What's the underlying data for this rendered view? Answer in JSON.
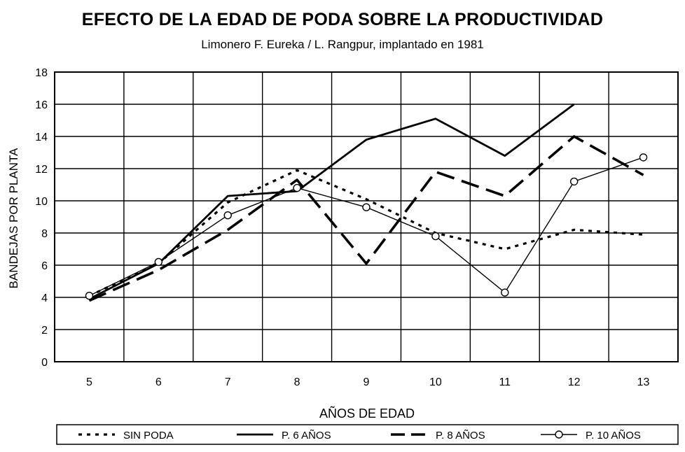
{
  "chart_data": {
    "type": "line",
    "title": "EFECTO DE LA EDAD DE  PODA SOBRE LA PRODUCTIVIDAD",
    "subtitle": "Limonero F. Eureka / L. Rangpur, implantado en 1981",
    "xlabel": "AÑOS DE EDAD",
    "ylabel": "BANDEJAS POR PLANTA",
    "x": [
      5,
      6,
      7,
      8,
      9,
      10,
      11,
      12,
      13
    ],
    "xlim": [
      4.5,
      13.5
    ],
    "ylim": [
      0,
      18
    ],
    "yticks": [
      0,
      2,
      4,
      6,
      8,
      10,
      12,
      14,
      16,
      18
    ],
    "grid": true,
    "legend_position": "bottom",
    "series": [
      {
        "name": "SIN PODA",
        "style": "dotted",
        "values": [
          4.1,
          6.1,
          9.9,
          11.9,
          10.1,
          8.0,
          7.0,
          8.2,
          7.9
        ]
      },
      {
        "name": "P. 6 AÑOS",
        "style": "solid",
        "values": [
          3.9,
          6.1,
          10.3,
          10.6,
          13.8,
          15.1,
          12.8,
          16.0,
          null
        ]
      },
      {
        "name": "P. 8 AÑOS",
        "style": "dashed",
        "values": [
          3.8,
          5.7,
          8.2,
          11.3,
          6.1,
          11.8,
          10.3,
          14.0,
          11.6
        ]
      },
      {
        "name": "P. 10 AÑOS",
        "style": "solid-circle",
        "values": [
          4.1,
          6.2,
          9.1,
          10.8,
          9.6,
          7.8,
          4.3,
          11.2,
          12.7
        ]
      }
    ]
  }
}
